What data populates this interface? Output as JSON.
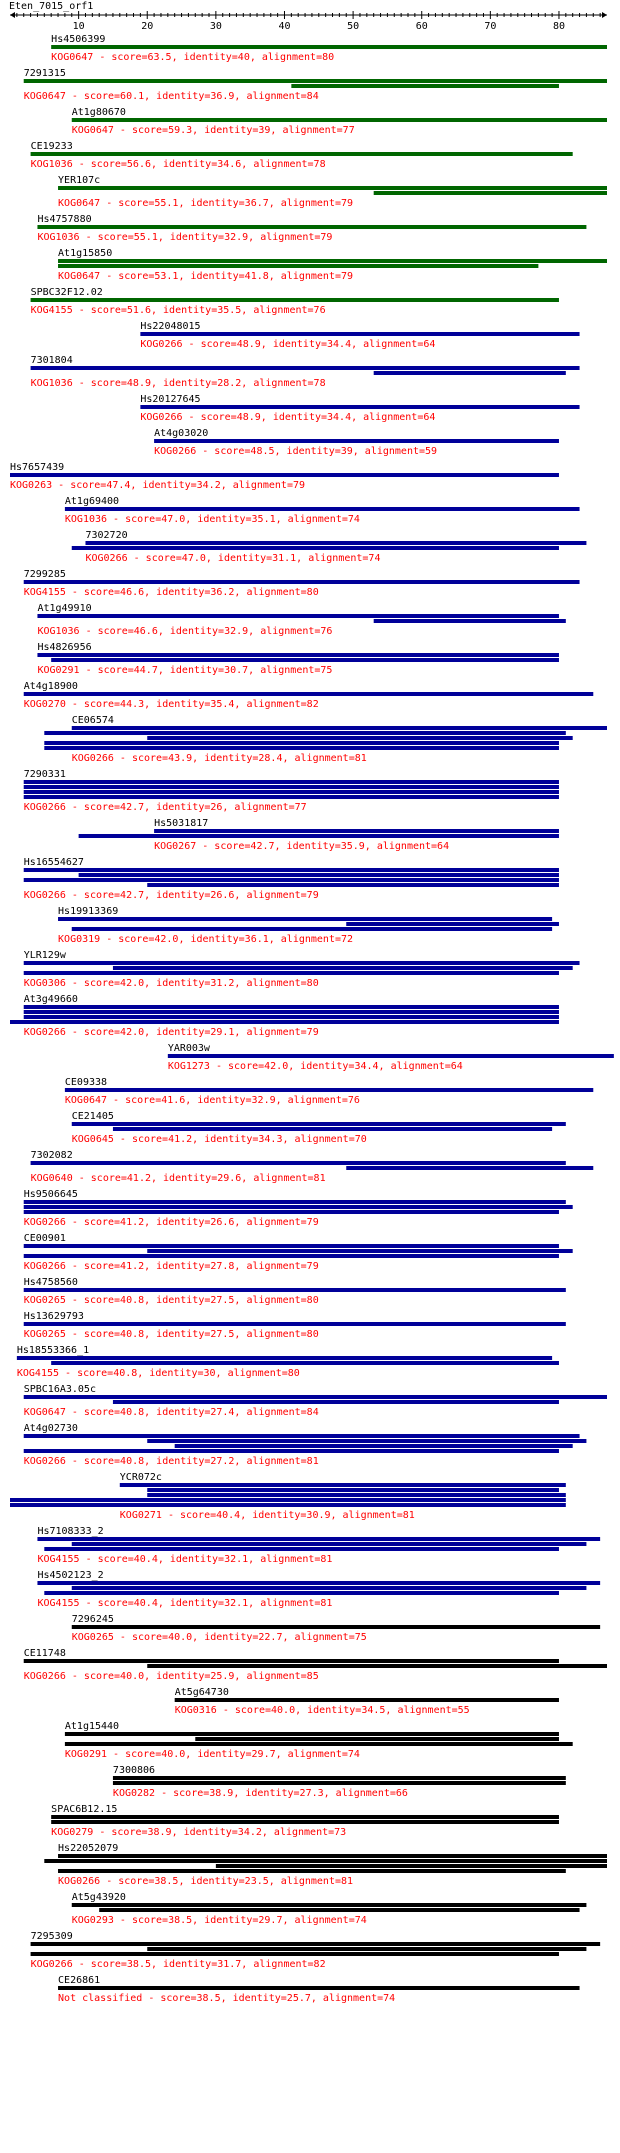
{
  "chart_data": {
    "type": "alignment-map",
    "title": "Eten_7015_orf1",
    "query_length": 87,
    "x_ticks": [
      10,
      20,
      30,
      40,
      50,
      60,
      70,
      80
    ],
    "colors": {
      "green": "#006600",
      "blue": "#000099",
      "black": "#000000",
      "name_text": "#000000",
      "desc_text": "#ff0000"
    },
    "hits": [
      {
        "name": "Hs4506399",
        "desc": "KOG0647 - score=63.5, identity=40, alignment=80",
        "color": "green",
        "segs": [
          [
            6,
            87
          ]
        ]
      },
      {
        "name": "7291315",
        "desc": "KOG0647 - score=60.1, identity=36.9, alignment=84",
        "color": "green",
        "segs": [
          [
            2,
            87
          ],
          [
            41,
            80
          ]
        ]
      },
      {
        "name": "At1g80670",
        "desc": "KOG0647 - score=59.3, identity=39, alignment=77",
        "color": "green",
        "segs": [
          [
            9,
            87
          ]
        ]
      },
      {
        "name": "CE19233",
        "desc": "KOG1036 - score=56.6, identity=34.6, alignment=78",
        "color": "green",
        "segs": [
          [
            3,
            82
          ]
        ]
      },
      {
        "name": "YER107c",
        "desc": "KOG0647 - score=55.1, identity=36.7, alignment=79",
        "color": "green",
        "segs": [
          [
            7,
            87
          ],
          [
            53,
            87
          ]
        ]
      },
      {
        "name": "Hs4757880",
        "desc": "KOG1036 - score=55.1, identity=32.9, alignment=79",
        "color": "green",
        "segs": [
          [
            4,
            84
          ]
        ]
      },
      {
        "name": "At1g15850",
        "desc": "KOG0647 - score=53.1, identity=41.8, alignment=79",
        "color": "green",
        "segs": [
          [
            7,
            87
          ],
          [
            7,
            77
          ]
        ]
      },
      {
        "name": "SPBC32F12.02",
        "desc": "KOG4155 - score=51.6, identity=35.5, alignment=76",
        "color": "green",
        "segs": [
          [
            3,
            80
          ]
        ]
      },
      {
        "name": "Hs22048015",
        "desc": "KOG0266 - score=48.9, identity=34.4, alignment=64",
        "color": "blue",
        "segs": [
          [
            19,
            83
          ]
        ]
      },
      {
        "name": "7301804",
        "desc": "KOG1036 - score=48.9, identity=28.2, alignment=78",
        "color": "blue",
        "segs": [
          [
            3,
            83
          ],
          [
            53,
            81
          ]
        ]
      },
      {
        "name": "Hs20127645",
        "desc": "KOG0266 - score=48.9, identity=34.4, alignment=64",
        "color": "blue",
        "segs": [
          [
            19,
            83
          ]
        ]
      },
      {
        "name": "At4g03020",
        "desc": "KOG0266 - score=48.5, identity=39, alignment=59",
        "color": "blue",
        "segs": [
          [
            21,
            80
          ]
        ]
      },
      {
        "name": "Hs7657439",
        "desc": "KOG0263 - score=47.4, identity=34.2, alignment=79",
        "color": "blue",
        "segs": [
          [
            0,
            80
          ]
        ]
      },
      {
        "name": "At1g69400",
        "desc": "KOG1036 - score=47.0, identity=35.1, alignment=74",
        "color": "blue",
        "segs": [
          [
            8,
            83
          ]
        ]
      },
      {
        "name": "7302720",
        "desc": "KOG0266 - score=47.0, identity=31.1, alignment=74",
        "color": "blue",
        "segs": [
          [
            11,
            84
          ],
          [
            9,
            80
          ]
        ]
      },
      {
        "name": "7299285",
        "desc": "KOG4155 - score=46.6, identity=36.2, alignment=80",
        "color": "blue",
        "segs": [
          [
            2,
            83
          ]
        ]
      },
      {
        "name": "At1g49910",
        "desc": "KOG1036 - score=46.6, identity=32.9, alignment=76",
        "color": "blue",
        "segs": [
          [
            4,
            80
          ],
          [
            53,
            81
          ]
        ]
      },
      {
        "name": "Hs4826956",
        "desc": "KOG0291 - score=44.7, identity=30.7, alignment=75",
        "color": "blue",
        "segs": [
          [
            4,
            80
          ],
          [
            6,
            80
          ]
        ]
      },
      {
        "name": "At4g18900",
        "desc": "KOG0270 - score=44.3, identity=35.4, alignment=82",
        "color": "blue",
        "segs": [
          [
            2,
            85
          ]
        ]
      },
      {
        "name": "CE06574",
        "desc": "KOG0266 - score=43.9, identity=28.4, alignment=81",
        "color": "blue",
        "segs": [
          [
            9,
            87
          ],
          [
            5,
            81
          ],
          [
            20,
            82
          ],
          [
            5,
            80
          ],
          [
            5,
            80
          ]
        ]
      },
      {
        "name": "7290331",
        "desc": "KOG0266 - score=42.7, identity=26, alignment=77",
        "color": "blue",
        "segs": [
          [
            2,
            80
          ],
          [
            2,
            80
          ],
          [
            2,
            80
          ],
          [
            2,
            80
          ]
        ]
      },
      {
        "name": "Hs5031817",
        "desc": "KOG0267 - score=42.7, identity=35.9, alignment=64",
        "color": "blue",
        "segs": [
          [
            21,
            80
          ],
          [
            10,
            80
          ]
        ]
      },
      {
        "name": "Hs16554627",
        "desc": "KOG0266 - score=42.7, identity=26.6, alignment=79",
        "color": "blue",
        "segs": [
          [
            2,
            80
          ],
          [
            10,
            80
          ],
          [
            2,
            80
          ],
          [
            20,
            80
          ]
        ]
      },
      {
        "name": "Hs19913369",
        "desc": "KOG0319 - score=42.0, identity=36.1, alignment=72",
        "color": "blue",
        "segs": [
          [
            7,
            79
          ],
          [
            49,
            80
          ],
          [
            9,
            79
          ]
        ]
      },
      {
        "name": "YLR129w",
        "desc": "KOG0306 - score=42.0, identity=31.2, alignment=80",
        "color": "blue",
        "segs": [
          [
            2,
            83
          ],
          [
            15,
            82
          ],
          [
            2,
            80
          ]
        ]
      },
      {
        "name": "At3g49660",
        "desc": "KOG0266 - score=42.0, identity=29.1, alignment=79",
        "color": "blue",
        "segs": [
          [
            2,
            80
          ],
          [
            2,
            80
          ],
          [
            2,
            80
          ],
          [
            0,
            80
          ]
        ]
      },
      {
        "name": "YAR003w",
        "desc": "KOG1273 - score=42.0, identity=34.4, alignment=64",
        "color": "blue",
        "segs": [
          [
            23,
            88
          ]
        ]
      },
      {
        "name": "CE09338",
        "desc": "KOG0647 - score=41.6, identity=32.9, alignment=76",
        "color": "blue",
        "segs": [
          [
            8,
            85
          ]
        ]
      },
      {
        "name": "CE21405",
        "desc": "KOG0645 - score=41.2, identity=34.3, alignment=70",
        "color": "blue",
        "segs": [
          [
            9,
            81
          ],
          [
            15,
            79
          ]
        ]
      },
      {
        "name": "7302082",
        "desc": "KOG0640 - score=41.2, identity=29.6, alignment=81",
        "color": "blue",
        "segs": [
          [
            3,
            81
          ],
          [
            49,
            85
          ]
        ]
      },
      {
        "name": "Hs9506645",
        "desc": "KOG0266 - score=41.2, identity=26.6, alignment=79",
        "color": "blue",
        "segs": [
          [
            2,
            81
          ],
          [
            2,
            82
          ],
          [
            2,
            80
          ]
        ]
      },
      {
        "name": "CE00901",
        "desc": "KOG0266 - score=41.2, identity=27.8, alignment=79",
        "color": "blue",
        "segs": [
          [
            2,
            80
          ],
          [
            20,
            82
          ],
          [
            2,
            80
          ]
        ]
      },
      {
        "name": "Hs4758560",
        "desc": "KOG0265 - score=40.8, identity=27.5, alignment=80",
        "color": "blue",
        "segs": [
          [
            2,
            81
          ]
        ]
      },
      {
        "name": "Hs13629793",
        "desc": "KOG0265 - score=40.8, identity=27.5, alignment=80",
        "color": "blue",
        "segs": [
          [
            2,
            81
          ]
        ]
      },
      {
        "name": "Hs18553366_1",
        "desc": "KOG4155 - score=40.8, identity=30, alignment=80",
        "color": "blue",
        "segs": [
          [
            1,
            79
          ],
          [
            6,
            80
          ]
        ]
      },
      {
        "name": "SPBC16A3.05c",
        "desc": "KOG0647 - score=40.8, identity=27.4, alignment=84",
        "color": "blue",
        "segs": [
          [
            2,
            87
          ],
          [
            15,
            80
          ]
        ]
      },
      {
        "name": "At4g02730",
        "desc": "KOG0266 - score=40.8, identity=27.2, alignment=81",
        "color": "blue",
        "segs": [
          [
            2,
            83
          ],
          [
            20,
            84
          ],
          [
            24,
            82
          ],
          [
            2,
            80
          ]
        ]
      },
      {
        "name": "YCR072c",
        "desc": "KOG0271 - score=40.4, identity=30.9, alignment=81",
        "color": "blue",
        "segs": [
          [
            16,
            81
          ],
          [
            20,
            80
          ],
          [
            20,
            81
          ],
          [
            0,
            81
          ],
          [
            0,
            81
          ]
        ]
      },
      {
        "name": "Hs7108333_2",
        "desc": "KOG4155 - score=40.4, identity=32.1, alignment=81",
        "color": "blue",
        "segs": [
          [
            4,
            86
          ],
          [
            9,
            84
          ],
          [
            5,
            80
          ]
        ]
      },
      {
        "name": "Hs4502123_2",
        "desc": "KOG4155 - score=40.4, identity=32.1, alignment=81",
        "color": "blue",
        "segs": [
          [
            4,
            86
          ],
          [
            9,
            84
          ],
          [
            5,
            80
          ]
        ]
      },
      {
        "name": "7296245",
        "desc": "KOG0265 - score=40.0, identity=22.7, alignment=75",
        "color": "black",
        "segs": [
          [
            9,
            86
          ]
        ]
      },
      {
        "name": "CE11748",
        "desc": "KOG0266 - score=40.0, identity=25.9, alignment=85",
        "color": "black",
        "segs": [
          [
            2,
            80
          ],
          [
            20,
            87
          ]
        ]
      },
      {
        "name": "At5g64730",
        "desc": "KOG0316 - score=40.0, identity=34.5, alignment=55",
        "color": "black",
        "segs": [
          [
            24,
            80
          ]
        ]
      },
      {
        "name": "At1g15440",
        "desc": "KOG0291 - score=40.0, identity=29.7, alignment=74",
        "color": "black",
        "segs": [
          [
            8,
            80
          ],
          [
            27,
            80
          ],
          [
            8,
            82
          ]
        ]
      },
      {
        "name": "7300806",
        "desc": "KOG0282 - score=38.9, identity=27.3, alignment=66",
        "color": "black",
        "segs": [
          [
            15,
            81
          ],
          [
            15,
            81
          ]
        ]
      },
      {
        "name": "SPAC6B12.15",
        "desc": "KOG0279 - score=38.9, identity=34.2, alignment=73",
        "color": "black",
        "segs": [
          [
            6,
            80
          ],
          [
            6,
            80
          ]
        ]
      },
      {
        "name": "Hs22052079",
        "desc": "KOG0266 - score=38.5, identity=23.5, alignment=81",
        "color": "black",
        "segs": [
          [
            7,
            87
          ],
          [
            5,
            87
          ],
          [
            30,
            87
          ],
          [
            7,
            81
          ]
        ]
      },
      {
        "name": "At5g43920",
        "desc": "KOG0293 - score=38.5, identity=29.7, alignment=74",
        "color": "black",
        "segs": [
          [
            9,
            84
          ],
          [
            13,
            83
          ]
        ]
      },
      {
        "name": "7295309",
        "desc": "KOG0266 - score=38.5, identity=31.7, alignment=82",
        "color": "black",
        "segs": [
          [
            3,
            86
          ],
          [
            20,
            84
          ],
          [
            3,
            80
          ]
        ]
      },
      {
        "name": "CE26861",
        "desc": "Not classified - score=38.5, identity=25.7, alignment=74",
        "color": "black",
        "segs": [
          [
            7,
            83
          ]
        ]
      }
    ]
  }
}
